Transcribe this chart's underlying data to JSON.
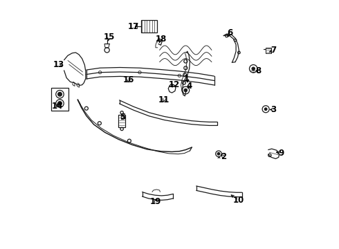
{
  "background_color": "#ffffff",
  "line_color": "#1a1a1a",
  "label_positions": {
    "1": [
      0.57,
      0.685,
      0.575,
      0.66
    ],
    "2": [
      0.718,
      0.37,
      0.7,
      0.385
    ],
    "3": [
      0.92,
      0.56,
      0.895,
      0.56
    ],
    "4": [
      0.58,
      0.655,
      0.568,
      0.638
    ],
    "5": [
      0.31,
      0.53,
      0.305,
      0.51
    ],
    "6": [
      0.745,
      0.87,
      0.73,
      0.845
    ],
    "7": [
      0.92,
      0.8,
      0.893,
      0.787
    ],
    "8": [
      0.858,
      0.715,
      0.84,
      0.72
    ],
    "9": [
      0.95,
      0.385,
      0.92,
      0.39
    ],
    "10": [
      0.778,
      0.195,
      0.74,
      0.222
    ],
    "11": [
      0.478,
      0.6,
      0.47,
      0.583
    ],
    "12": [
      0.518,
      0.66,
      0.505,
      0.642
    ],
    "13": [
      0.053,
      0.74,
      0.075,
      0.73
    ],
    "14": [
      0.048,
      0.575,
      0.048,
      0.592
    ],
    "15": [
      0.258,
      0.852,
      0.248,
      0.828
    ],
    "16": [
      0.335,
      0.68,
      0.338,
      0.66
    ],
    "17": [
      0.355,
      0.895,
      0.375,
      0.88
    ],
    "18": [
      0.465,
      0.845,
      0.455,
      0.82
    ],
    "19": [
      0.445,
      0.188,
      0.438,
      0.208
    ]
  },
  "font_size": 8.5,
  "lw": 0.9
}
